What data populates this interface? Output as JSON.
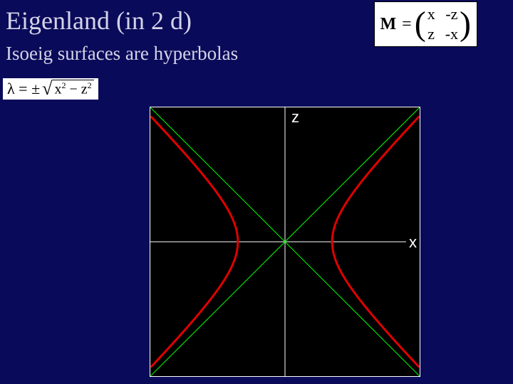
{
  "title": "Eigenland (in 2 d)",
  "subtitle": "Isoeig surfaces are hyperbolas",
  "matrix": {
    "symbol": "M",
    "eq": "=",
    "cells": [
      "x",
      "-z",
      "z",
      "-x"
    ]
  },
  "lambda": {
    "lhs": "λ",
    "pm": "±",
    "x_term": "x",
    "x_exp": "2",
    "minus": "−",
    "z_term": "z",
    "z_exp": "2"
  },
  "chart": {
    "type": "hyperbola-diagram",
    "background_color": "#000000",
    "border_color": "#ffffff",
    "axis_color": "#ffffff",
    "asymptote_color": "#00ff00",
    "curve_color": "#e00000",
    "curve_width": 3,
    "size": 380,
    "xlim": [
      -1,
      1
    ],
    "ylim": [
      -1,
      1
    ],
    "hyperbola_a": 0.35,
    "axis_labels": {
      "x": "x",
      "z": "z"
    },
    "label_color": "#ffffff",
    "label_fontsize": 22
  },
  "colors": {
    "page_bg": "#0a0a5a",
    "text": "#d4d4e8",
    "panel_bg": "#ffffff",
    "panel_text": "#000000"
  }
}
